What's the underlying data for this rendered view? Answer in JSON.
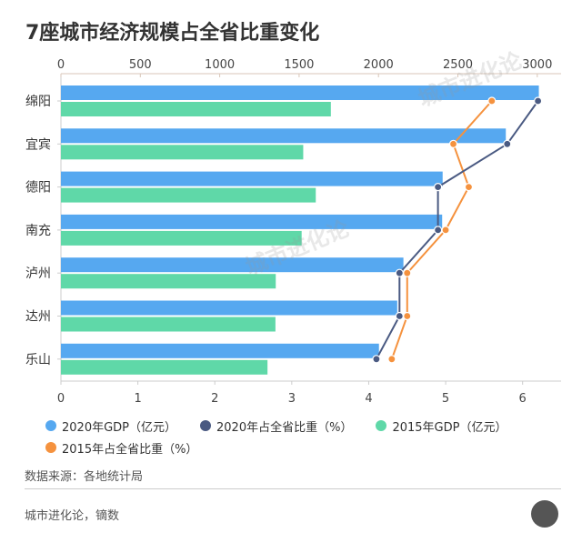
{
  "chart_data": {
    "type": "bar",
    "title": "7座城市经济规模占全省比重变化",
    "categories": [
      "绵阳",
      "宜宾",
      "德阳",
      "南充",
      "泸州",
      "达州",
      "乐山"
    ],
    "top_axis": {
      "ticks": [
        "0",
        "500",
        "1000",
        "1500",
        "2000",
        "2500",
        "3000"
      ],
      "range": [
        0,
        3150
      ]
    },
    "bottom_axis": {
      "ticks": [
        "0",
        "1",
        "2",
        "3",
        "4",
        "5",
        "6"
      ],
      "range": [
        0,
        6.5
      ]
    },
    "series": [
      {
        "name": "2020年GDP（亿元）",
        "type": "bar",
        "axis": "top",
        "color": "#56a8f0",
        "values": [
          3010,
          2802,
          2404,
          2401,
          2157,
          2118,
          2003
        ]
      },
      {
        "name": "2020年占全省比重（%）",
        "type": "line",
        "axis": "bottom",
        "color": "#4a5a82",
        "values": [
          6.2,
          5.8,
          4.9,
          4.9,
          4.4,
          4.4,
          4.1
        ]
      },
      {
        "name": "2015年GDP（亿元）",
        "type": "bar",
        "axis": "top",
        "color": "#5fd8a8",
        "values": [
          1700,
          1526,
          1605,
          1516,
          1353,
          1351,
          1301
        ]
      },
      {
        "name": "2015年占全省比重（%）",
        "type": "line",
        "axis": "bottom",
        "color": "#f5923e",
        "values": [
          5.6,
          5.1,
          5.3,
          5.0,
          4.5,
          4.5,
          4.3
        ]
      }
    ],
    "grid": false,
    "legend_position": "bottom"
  },
  "source": "数据来源：各地统计局",
  "footer": "城市进化论，镝数",
  "logo": "UE",
  "watermark": "城市进化论 URBAN EVOLUTION"
}
